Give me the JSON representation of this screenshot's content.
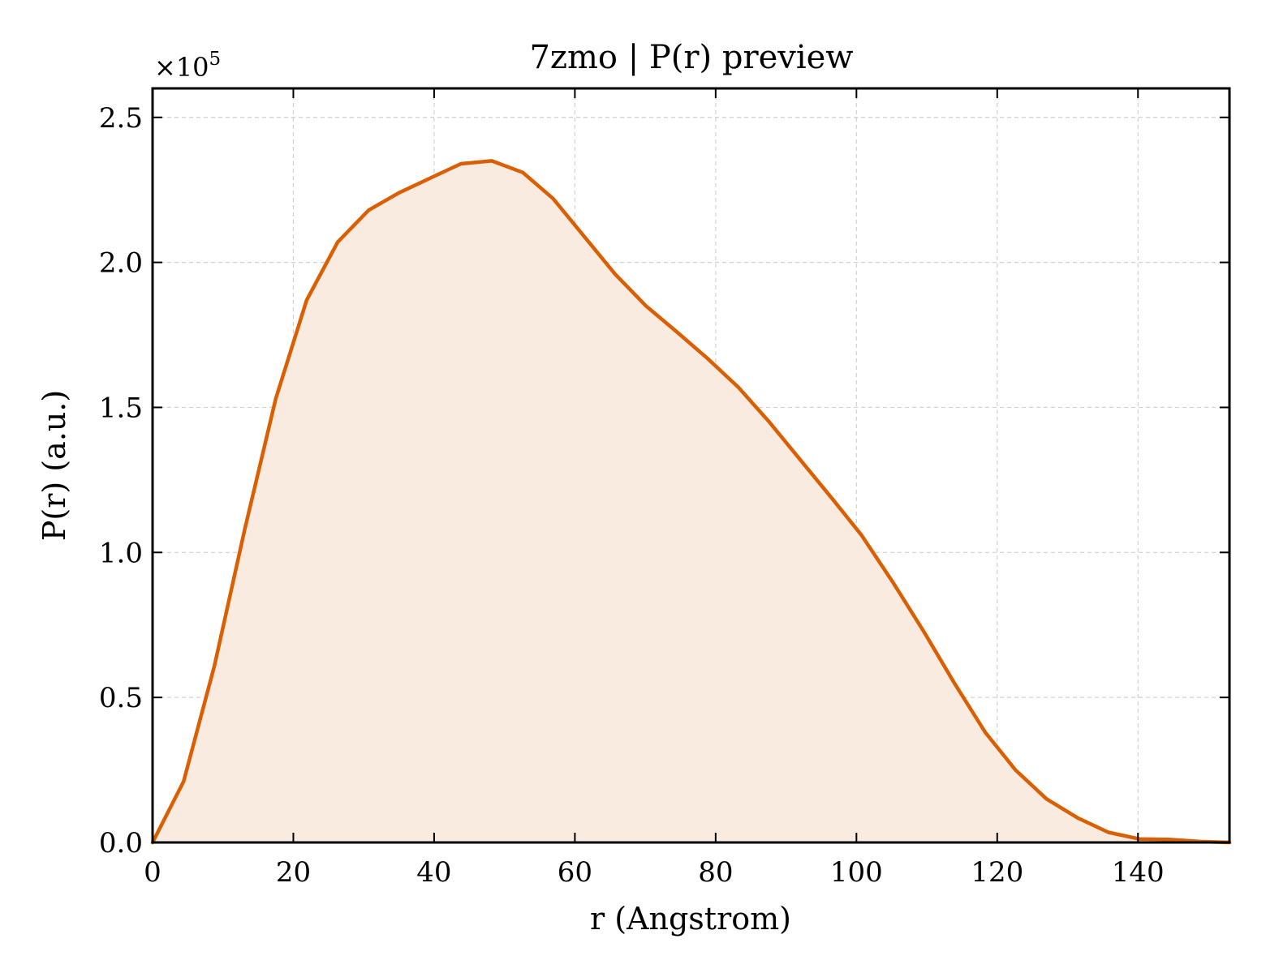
{
  "chart_data": {
    "type": "area",
    "title": "7zmo | P(r) preview",
    "xlabel": "r (Angstrom)",
    "ylabel": "P(r) (a.u.)",
    "y_multiplier_label": "×10",
    "y_multiplier_exponent": "5",
    "xlim": [
      0,
      153
    ],
    "ylim": [
      0,
      2.6
    ],
    "x_ticks": [
      0,
      20,
      40,
      60,
      80,
      100,
      120,
      140
    ],
    "x_tick_labels": [
      "0",
      "20",
      "40",
      "60",
      "80",
      "100",
      "120",
      "140"
    ],
    "y_ticks": [
      0,
      0.5,
      1.0,
      1.5,
      2.0,
      2.5
    ],
    "y_tick_labels": [
      "0.0",
      "0.5",
      "1.0",
      "1.5",
      "2.0",
      "2.5"
    ],
    "grid": true,
    "line_color": "#d95f02",
    "fill_color": "#f9ebe0",
    "series": [
      {
        "x": [
          0,
          4.4,
          8.8,
          13.1,
          17.5,
          21.9,
          26.3,
          30.7,
          35.0,
          39.4,
          43.8,
          48.2,
          52.6,
          56.9,
          61.3,
          65.7,
          70.1,
          74.5,
          78.8,
          83.2,
          87.6,
          92.0,
          96.4,
          100.7,
          105.1,
          109.5,
          113.9,
          118.3,
          122.6,
          127.0,
          131.4,
          135.8,
          140.2,
          144.5,
          148.9,
          153.0
        ],
        "y": [
          0.0,
          0.21,
          0.61,
          1.08,
          1.53,
          1.87,
          2.07,
          2.18,
          2.24,
          2.29,
          2.34,
          2.35,
          2.31,
          2.22,
          2.09,
          1.96,
          1.85,
          1.76,
          1.67,
          1.57,
          1.45,
          1.32,
          1.19,
          1.06,
          0.9,
          0.73,
          0.55,
          0.38,
          0.25,
          0.15,
          0.085,
          0.035,
          0.012,
          0.01,
          0.003,
          0.0
        ]
      }
    ]
  }
}
